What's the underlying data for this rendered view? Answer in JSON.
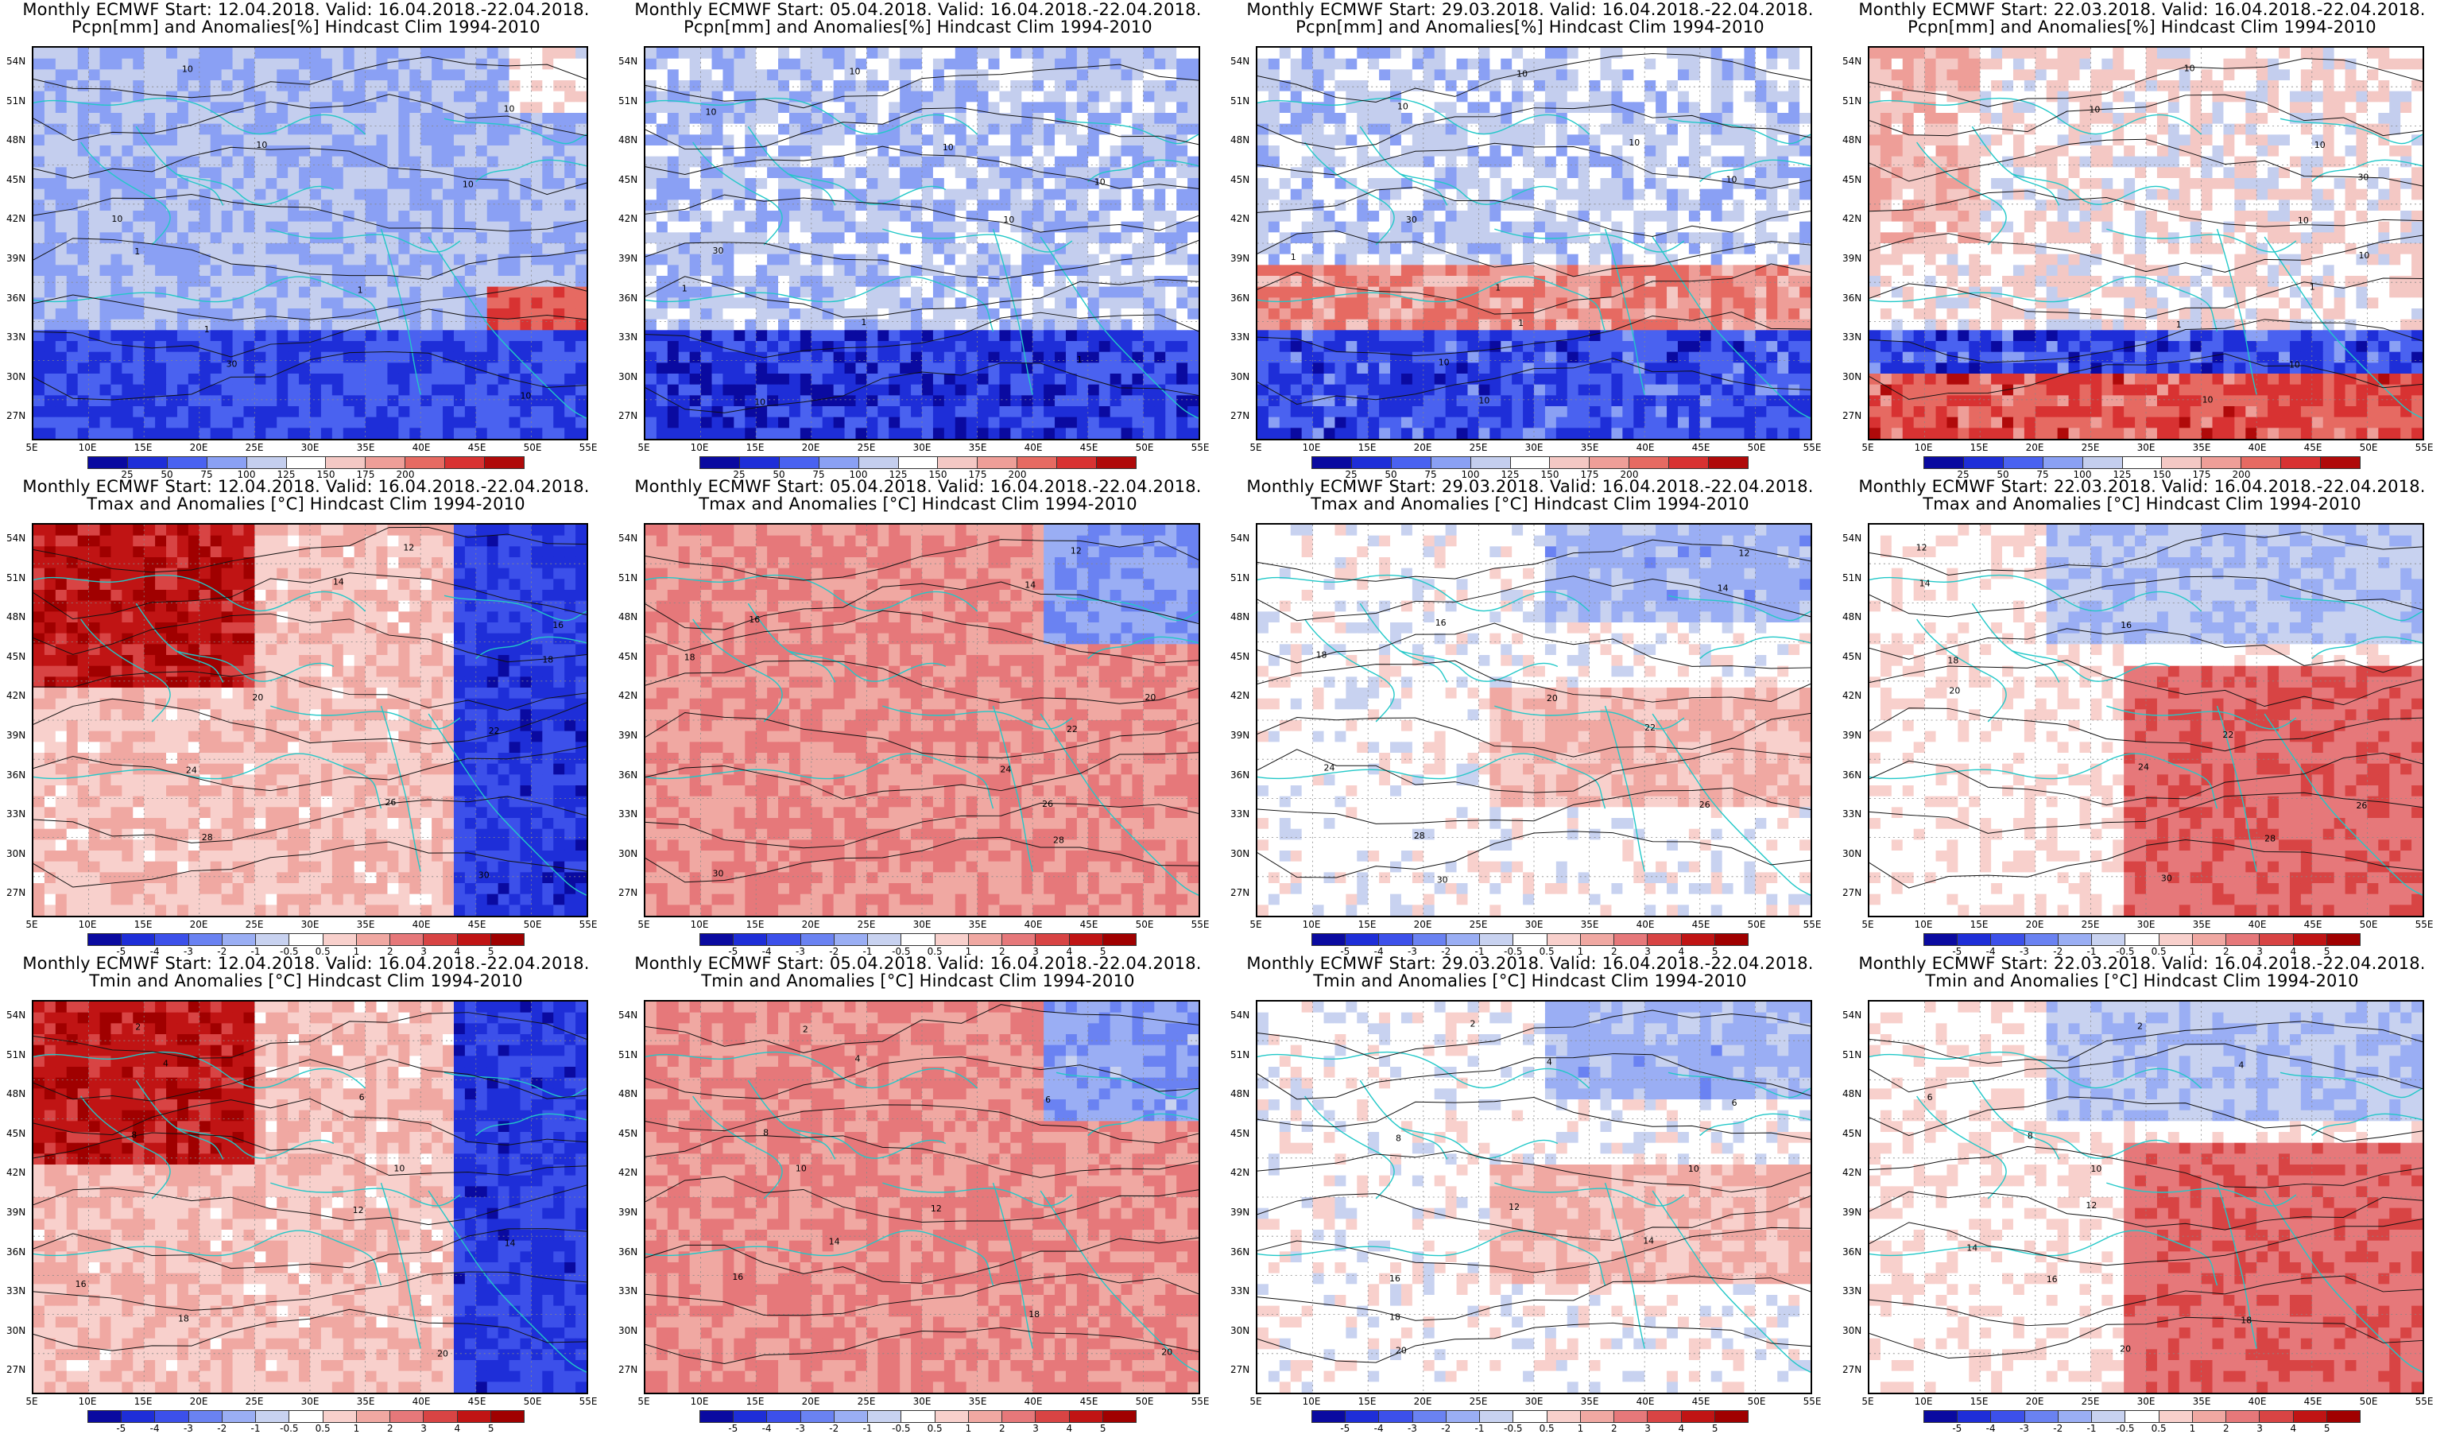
{
  "columns": [
    {
      "start": "12.04.2018"
    },
    {
      "start": "05.04.2018"
    },
    {
      "start": "29.03.2018"
    },
    {
      "start": "22.03.2018"
    }
  ],
  "rows": [
    {
      "title_line1_template": "Monthly ECMWF Start: {start}. Valid: 16.04.2018.-22.04.2018.",
      "title_line2": "Pcpn[mm] and Anomalies[%] Hindcast Clim 1994-2010",
      "colorbar_ticks": [
        "25",
        "50",
        "75",
        "100",
        "125",
        "150",
        "175",
        "200"
      ],
      "colorbar_colors": [
        "#0a0aa0",
        "#1e2ed8",
        "#4a62f0",
        "#8aa0f4",
        "#c4ceee",
        "#ffffff",
        "#f4c8c4",
        "#ee9e98",
        "#e66a62",
        "#d83232",
        "#b00a0a"
      ]
    },
    {
      "title_line1_template": "Monthly ECMWF Start: {start}. Valid: 16.04.2018.-22.04.2018.",
      "title_line2": "Tmax and Anomalies [°C] Hindcast Clim 1994-2010",
      "colorbar_ticks": [
        "-5",
        "-4",
        "-3",
        "-2",
        "-1",
        "-0.5",
        "0.5",
        "1",
        "2",
        "3",
        "4",
        "5"
      ],
      "colorbar_colors": [
        "#0a0aa0",
        "#1e2ed8",
        "#3c50ea",
        "#6a82f2",
        "#9aaef4",
        "#c8d2f0",
        "#ffffff",
        "#f8d0cc",
        "#f0a8a2",
        "#e6787a",
        "#d84444",
        "#c01414",
        "#a00000"
      ]
    },
    {
      "title_line1_template": "Monthly ECMWF Start: {start}. Valid: 16.04.2018.-22.04.2018.",
      "title_line2": "Tmin and Anomalies [°C] Hindcast Clim 1994-2010",
      "colorbar_ticks": [
        "-5",
        "-4",
        "-3",
        "-2",
        "-1",
        "-0.5",
        "0.5",
        "1",
        "2",
        "3",
        "4",
        "5"
      ],
      "colorbar_colors": [
        "#0a0aa0",
        "#1e2ed8",
        "#3c50ea",
        "#6a82f2",
        "#9aaef4",
        "#c8d2f0",
        "#ffffff",
        "#f8d0cc",
        "#f0a8a2",
        "#e6787a",
        "#d84444",
        "#c01414",
        "#a00000"
      ]
    }
  ],
  "axes": {
    "lat_labels": [
      "54N",
      "51N",
      "48N",
      "45N",
      "42N",
      "39N",
      "36N",
      "33N",
      "30N",
      "27N"
    ],
    "lon_labels": [
      "5E",
      "10E",
      "15E",
      "20E",
      "25E",
      "30E",
      "35E",
      "40E",
      "45E",
      "50E",
      "55E"
    ]
  },
  "panels": [
    {
      "row": 0,
      "col": 0,
      "contour_labels": [
        "10",
        "10",
        "10",
        "10",
        "10",
        "1",
        "1",
        "1",
        "30",
        "10"
      ],
      "anomaly": "mostly_dry"
    },
    {
      "row": 0,
      "col": 1,
      "contour_labels": [
        "10",
        "10",
        "10",
        "10",
        "10",
        "30",
        "1",
        "1",
        "1",
        "10"
      ],
      "anomaly": "dry"
    },
    {
      "row": 0,
      "col": 2,
      "contour_labels": [
        "10",
        "10",
        "10",
        "10",
        "30",
        "1",
        "1",
        "1",
        "10",
        "10"
      ],
      "anomaly": "mixed"
    },
    {
      "row": 0,
      "col": 3,
      "contour_labels": [
        "10",
        "10",
        "10",
        "30",
        "10",
        "10",
        "1",
        "1",
        "10",
        "10"
      ],
      "anomaly": "mixed_wet_south"
    },
    {
      "row": 1,
      "col": 0,
      "contour_labels": [
        "12",
        "14",
        "16",
        "18",
        "20",
        "22",
        "24",
        "26",
        "28",
        "30"
      ],
      "anomaly": "warm_west_cold_east"
    },
    {
      "row": 1,
      "col": 1,
      "contour_labels": [
        "12",
        "14",
        "16",
        "18",
        "20",
        "22",
        "24",
        "26",
        "28",
        "30"
      ],
      "anomaly": "warm"
    },
    {
      "row": 1,
      "col": 2,
      "contour_labels": [
        "12",
        "14",
        "16",
        "18",
        "20",
        "22",
        "24",
        "26",
        "28",
        "30"
      ],
      "anomaly": "near_normal"
    },
    {
      "row": 1,
      "col": 3,
      "contour_labels": [
        "12",
        "14",
        "16",
        "18",
        "20",
        "22",
        "24",
        "26",
        "28",
        "30"
      ],
      "anomaly": "warm_southeast"
    },
    {
      "row": 2,
      "col": 0,
      "contour_labels": [
        "2",
        "4",
        "6",
        "8",
        "10",
        "12",
        "14",
        "16",
        "18",
        "20"
      ],
      "anomaly": "warm_west_cold_east"
    },
    {
      "row": 2,
      "col": 1,
      "contour_labels": [
        "2",
        "4",
        "6",
        "8",
        "10",
        "12",
        "14",
        "16",
        "18",
        "20"
      ],
      "anomaly": "warm"
    },
    {
      "row": 2,
      "col": 2,
      "contour_labels": [
        "2",
        "4",
        "6",
        "8",
        "10",
        "12",
        "14",
        "16",
        "18",
        "20"
      ],
      "anomaly": "near_normal"
    },
    {
      "row": 2,
      "col": 3,
      "contour_labels": [
        "2",
        "4",
        "6",
        "8",
        "10",
        "12",
        "14",
        "16",
        "18",
        "20"
      ],
      "anomaly": "warm_southeast"
    }
  ]
}
